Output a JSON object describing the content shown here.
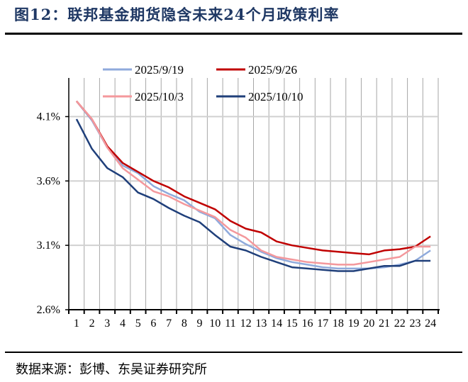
{
  "title": "图12：联邦基金期货隐含未来24个月政策利率",
  "source": "数据来源：彭博、东吴证券研究所",
  "chart_data": {
    "type": "line",
    "title": "图12：联邦基金期货隐含未来24个月政策利率",
    "xlabel": "",
    "ylabel": "",
    "categories": [
      "1",
      "2",
      "3",
      "4",
      "5",
      "6",
      "7",
      "8",
      "9",
      "10",
      "11",
      "12",
      "13",
      "14",
      "15",
      "16",
      "17",
      "18",
      "19",
      "20",
      "21",
      "22",
      "23",
      "24"
    ],
    "ylim": [
      2.6,
      4.4
    ],
    "yticks": [
      2.6,
      3.1,
      3.6,
      4.1
    ],
    "ytick_labels": [
      "2.6%",
      "3.1%",
      "3.6%",
      "4.1%"
    ],
    "grid": "horizontal at y ticks, vertical between categories",
    "legend_position": "top",
    "series": [
      {
        "name": "2025/9/19",
        "color": "#8faadc",
        "values": [
          4.22,
          4.07,
          3.86,
          3.72,
          3.66,
          3.56,
          3.5,
          3.45,
          3.36,
          3.31,
          3.18,
          3.11,
          3.05,
          3.0,
          2.97,
          2.95,
          2.93,
          2.92,
          2.92,
          2.92,
          2.93,
          2.95,
          2.98,
          3.06
        ]
      },
      {
        "name": "2025/9/26",
        "color": "#c00000",
        "values": [
          4.22,
          4.08,
          3.87,
          3.74,
          3.67,
          3.6,
          3.55,
          3.48,
          3.43,
          3.38,
          3.29,
          3.23,
          3.2,
          3.13,
          3.1,
          3.08,
          3.06,
          3.05,
          3.04,
          3.03,
          3.06,
          3.07,
          3.09,
          3.17
        ]
      },
      {
        "name": "2025/10/3",
        "color": "#f4989c",
        "values": [
          4.22,
          4.08,
          3.86,
          3.7,
          3.61,
          3.52,
          3.48,
          3.42,
          3.37,
          3.32,
          3.22,
          3.16,
          3.06,
          3.01,
          2.99,
          2.97,
          2.96,
          2.95,
          2.95,
          2.97,
          2.99,
          3.01,
          3.09,
          3.09
        ]
      },
      {
        "name": "2025/10/10",
        "color": "#1f3f7a",
        "values": [
          4.08,
          3.85,
          3.7,
          3.63,
          3.51,
          3.46,
          3.39,
          3.33,
          3.28,
          3.18,
          3.09,
          3.06,
          3.01,
          2.97,
          2.93,
          2.92,
          2.91,
          2.9,
          2.9,
          2.92,
          2.94,
          2.94,
          2.98,
          2.98
        ]
      }
    ]
  }
}
